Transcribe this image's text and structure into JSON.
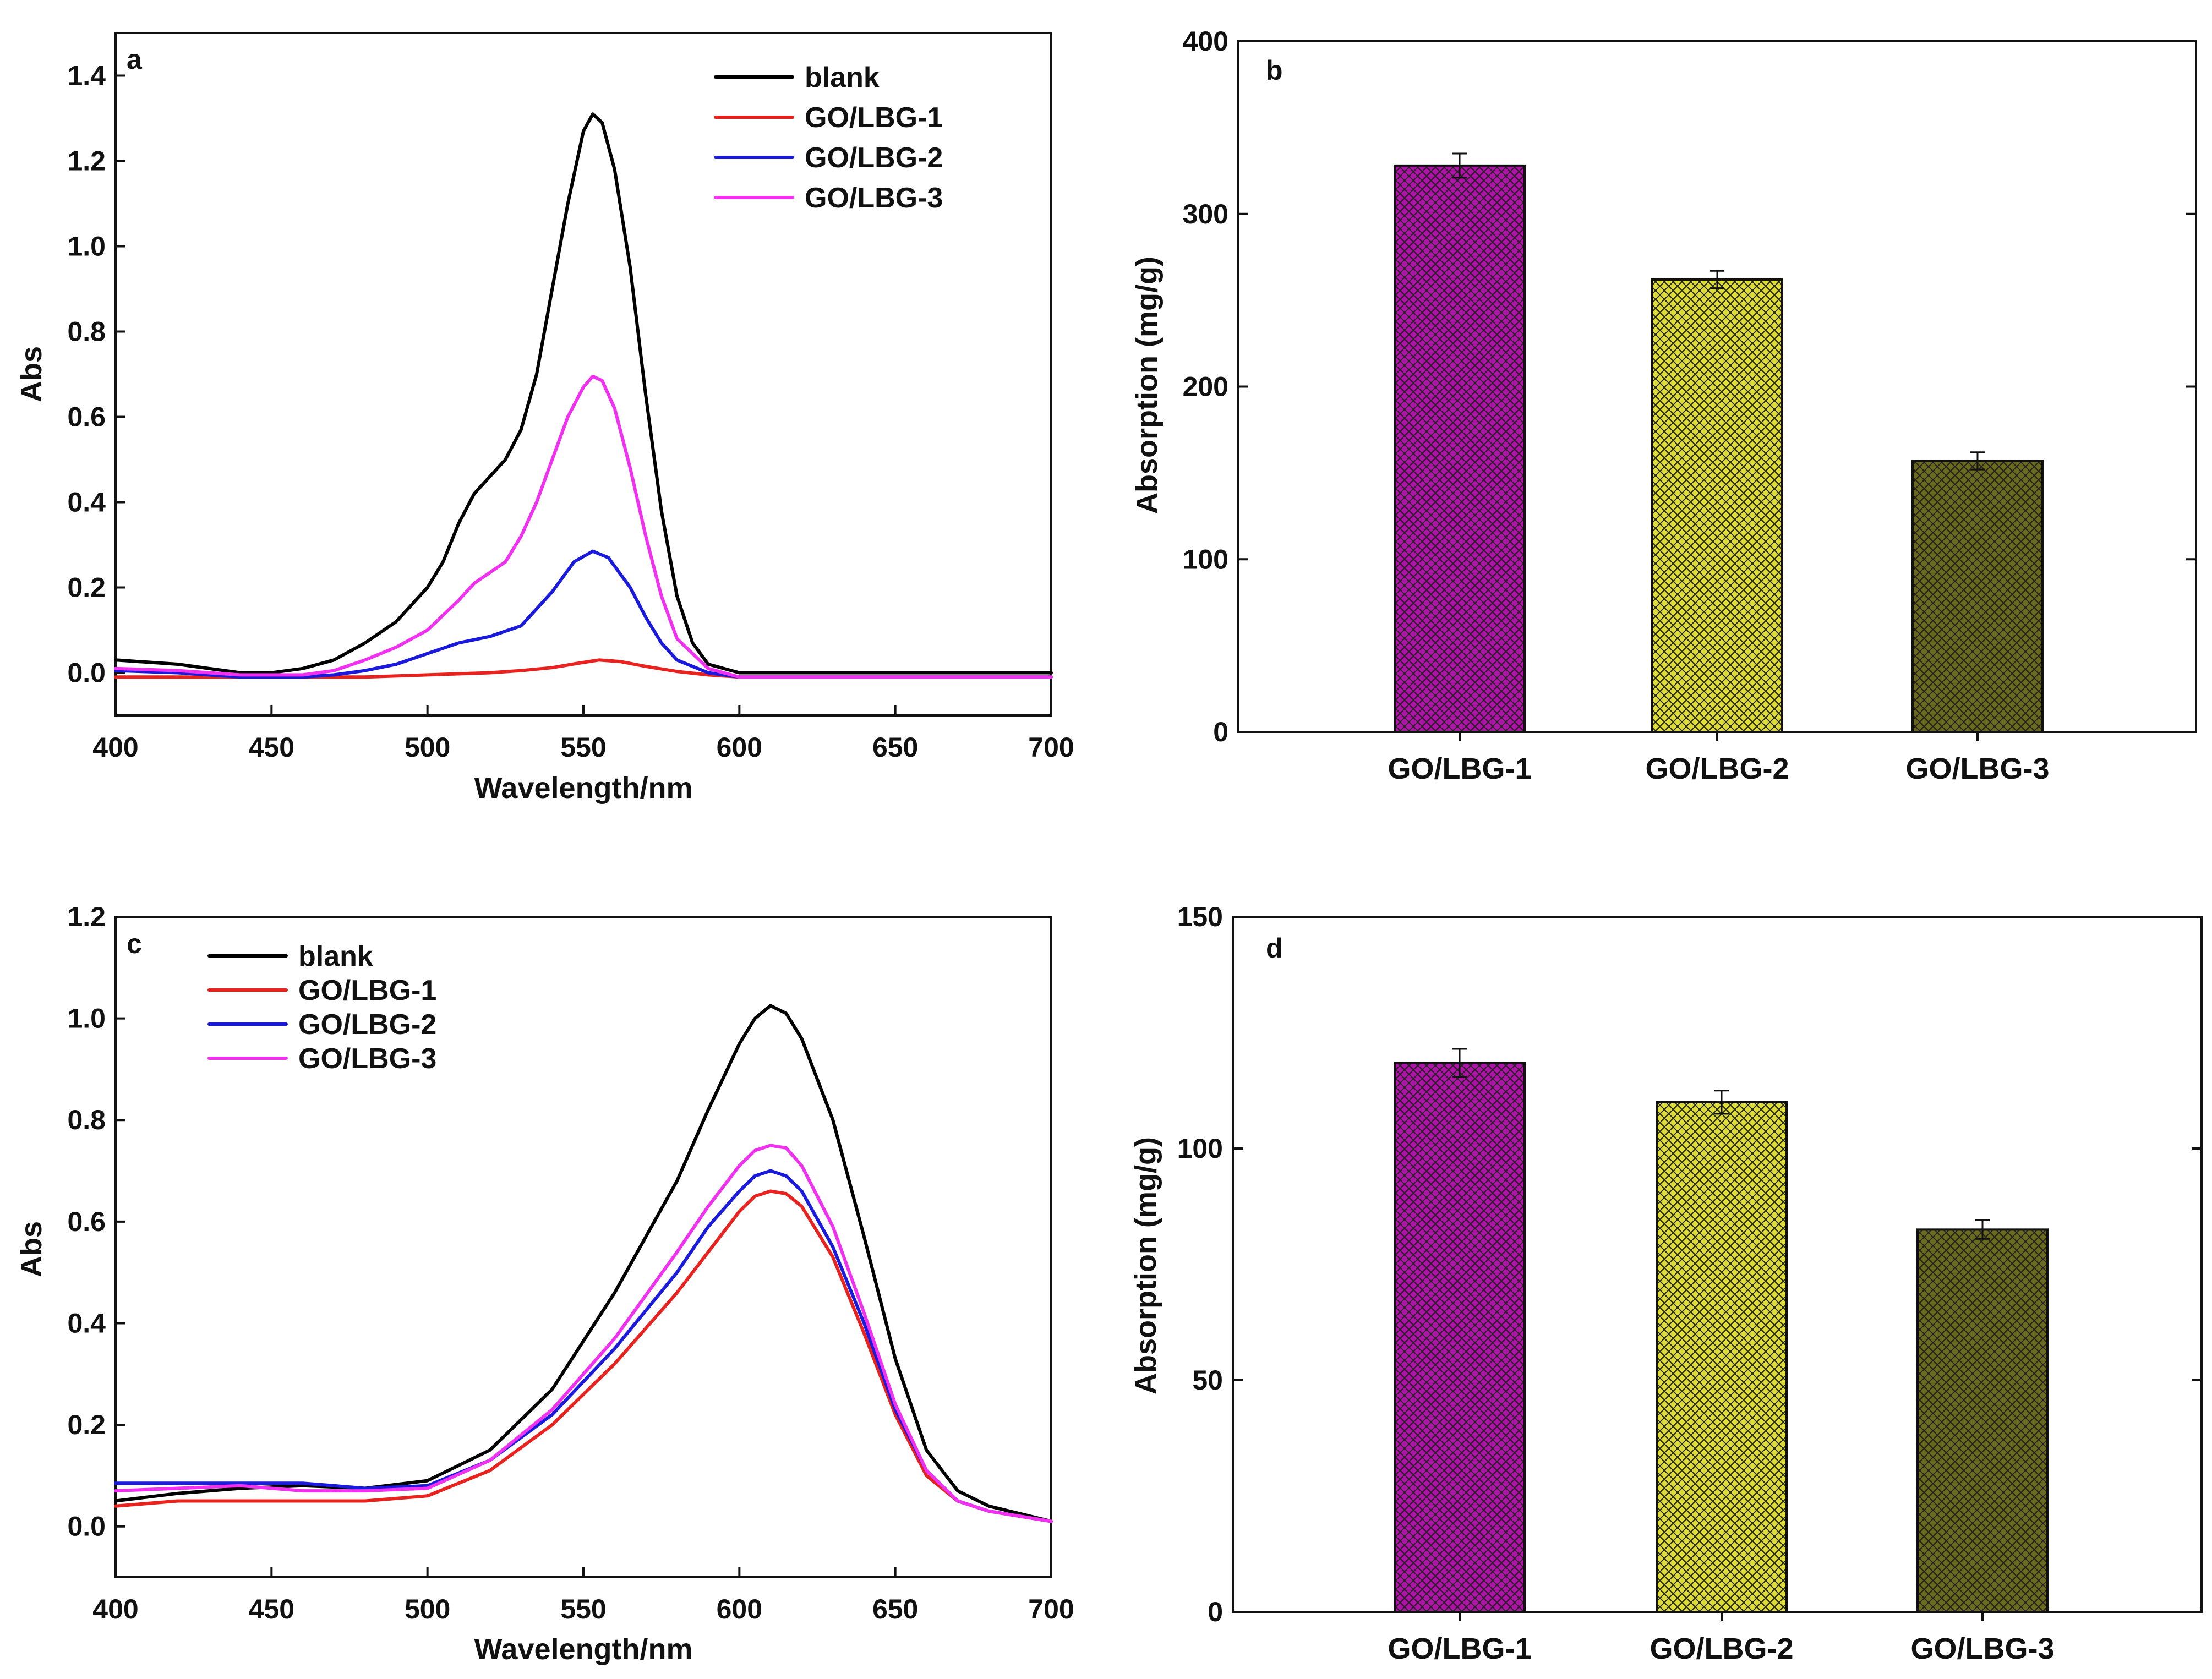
{
  "colors": {
    "blank": "#000000",
    "GO/LBG-1": "#e8231f",
    "GO/LBG-2": "#1a1adc",
    "GO/LBG-3": "#f032f0",
    "bar1": "#b012a8",
    "bar2": "#dcdc3a",
    "bar3": "#6b6b20"
  },
  "chart_data": [
    {
      "panel": "a",
      "type": "line",
      "xlabel": "Wavelength/nm",
      "ylabel": "Abs",
      "xlim": [
        400,
        700
      ],
      "ylim": [
        -0.1,
        1.5
      ],
      "xticks": [
        400,
        450,
        500,
        550,
        600,
        650,
        700
      ],
      "yticks": [
        0.0,
        0.2,
        0.4,
        0.6,
        0.8,
        1.0,
        1.2,
        1.4
      ],
      "xtick_labels": [
        "400",
        "450",
        "500",
        "550",
        "600",
        "650",
        "700"
      ],
      "ytick_labels": [
        "0.0",
        "0.2",
        "0.4",
        "0.6",
        "0.8",
        "1.0",
        "1.2",
        "1.4"
      ],
      "legend": "top-right",
      "series": [
        {
          "name": "blank",
          "color_key": "blank",
          "x": [
            400,
            420,
            430,
            440,
            450,
            460,
            470,
            480,
            490,
            500,
            505,
            510,
            515,
            520,
            525,
            530,
            535,
            540,
            545,
            550,
            553,
            556,
            560,
            565,
            570,
            575,
            580,
            585,
            590,
            600,
            620,
            650,
            700
          ],
          "y": [
            0.03,
            0.02,
            0.01,
            0.0,
            0.0,
            0.01,
            0.03,
            0.07,
            0.12,
            0.2,
            0.26,
            0.35,
            0.42,
            0.46,
            0.5,
            0.57,
            0.7,
            0.9,
            1.1,
            1.27,
            1.31,
            1.29,
            1.18,
            0.95,
            0.65,
            0.38,
            0.18,
            0.07,
            0.02,
            0.0,
            0.0,
            0.0,
            0.0
          ]
        },
        {
          "name": "GO/LBG-1",
          "color_key": "GO/LBG-1",
          "x": [
            400,
            450,
            480,
            500,
            520,
            530,
            540,
            548,
            555,
            562,
            570,
            580,
            590,
            600,
            650,
            700
          ],
          "y": [
            -0.01,
            -0.01,
            -0.01,
            -0.005,
            0.0,
            0.005,
            0.012,
            0.022,
            0.03,
            0.026,
            0.015,
            0.003,
            -0.005,
            -0.01,
            -0.01,
            -0.01
          ]
        },
        {
          "name": "GO/LBG-2",
          "color_key": "GO/LBG-2",
          "x": [
            400,
            420,
            440,
            460,
            470,
            480,
            490,
            500,
            510,
            520,
            530,
            540,
            547,
            553,
            558,
            565,
            570,
            575,
            580,
            590,
            600,
            650,
            700
          ],
          "y": [
            0.005,
            0.0,
            -0.01,
            -0.01,
            -0.005,
            0.005,
            0.02,
            0.045,
            0.07,
            0.085,
            0.11,
            0.19,
            0.26,
            0.285,
            0.27,
            0.2,
            0.13,
            0.07,
            0.03,
            0.0,
            -0.01,
            -0.01,
            -0.01
          ]
        },
        {
          "name": "GO/LBG-3",
          "color_key": "GO/LBG-3",
          "x": [
            400,
            420,
            440,
            460,
            470,
            480,
            490,
            500,
            510,
            515,
            520,
            525,
            530,
            535,
            540,
            545,
            550,
            553,
            556,
            560,
            565,
            570,
            575,
            580,
            590,
            600,
            650,
            700
          ],
          "y": [
            0.01,
            0.005,
            -0.005,
            -0.005,
            0.005,
            0.03,
            0.06,
            0.1,
            0.17,
            0.21,
            0.235,
            0.26,
            0.32,
            0.4,
            0.5,
            0.6,
            0.67,
            0.695,
            0.685,
            0.62,
            0.48,
            0.32,
            0.18,
            0.08,
            0.01,
            -0.01,
            -0.01,
            -0.01
          ]
        }
      ]
    },
    {
      "panel": "b",
      "type": "bar",
      "xlabel": "",
      "ylabel": "Absorption (mg/g)",
      "ylim": [
        0,
        400
      ],
      "yticks": [
        0,
        100,
        200,
        300,
        400
      ],
      "ytick_labels": [
        "0",
        "100",
        "200",
        "300",
        "400"
      ],
      "categories": [
        "GO/LBG-1",
        "GO/LBG-2",
        "GO/LBG-3"
      ],
      "values": [
        328,
        262,
        157
      ],
      "errors": [
        7,
        5,
        5
      ],
      "color_keys": [
        "bar1",
        "bar2",
        "bar3"
      ]
    },
    {
      "panel": "c",
      "type": "line",
      "xlabel": "Wavelength/nm",
      "ylabel": "Abs",
      "xlim": [
        400,
        700
      ],
      "ylim": [
        -0.1,
        1.2
      ],
      "xticks": [
        400,
        450,
        500,
        550,
        600,
        650,
        700
      ],
      "yticks": [
        0.0,
        0.2,
        0.4,
        0.6,
        0.8,
        1.0,
        1.2
      ],
      "xtick_labels": [
        "400",
        "450",
        "500",
        "550",
        "600",
        "650",
        "700"
      ],
      "ytick_labels": [
        "0.0",
        "0.2",
        "0.4",
        "0.6",
        "0.8",
        "1.0",
        "1.2"
      ],
      "legend": "top-left",
      "series": [
        {
          "name": "blank",
          "color_key": "blank",
          "x": [
            400,
            420,
            440,
            460,
            480,
            500,
            520,
            540,
            560,
            580,
            590,
            600,
            605,
            610,
            615,
            620,
            630,
            640,
            650,
            660,
            670,
            680,
            700
          ],
          "y": [
            0.05,
            0.065,
            0.075,
            0.08,
            0.075,
            0.09,
            0.15,
            0.27,
            0.46,
            0.68,
            0.82,
            0.95,
            1.0,
            1.025,
            1.01,
            0.96,
            0.8,
            0.57,
            0.33,
            0.15,
            0.07,
            0.04,
            0.01
          ]
        },
        {
          "name": "GO/LBG-1",
          "color_key": "GO/LBG-1",
          "x": [
            400,
            420,
            440,
            460,
            480,
            500,
            520,
            540,
            560,
            580,
            590,
            600,
            605,
            610,
            615,
            620,
            630,
            640,
            650,
            660,
            670,
            680,
            700
          ],
          "y": [
            0.04,
            0.05,
            0.05,
            0.05,
            0.05,
            0.06,
            0.11,
            0.2,
            0.32,
            0.46,
            0.54,
            0.62,
            0.65,
            0.66,
            0.655,
            0.63,
            0.53,
            0.38,
            0.22,
            0.1,
            0.05,
            0.03,
            0.01
          ]
        },
        {
          "name": "GO/LBG-2",
          "color_key": "GO/LBG-2",
          "x": [
            400,
            420,
            440,
            460,
            470,
            480,
            500,
            520,
            540,
            560,
            580,
            590,
            600,
            605,
            610,
            615,
            620,
            630,
            640,
            650,
            660,
            670,
            680,
            700
          ],
          "y": [
            0.085,
            0.085,
            0.085,
            0.085,
            0.08,
            0.075,
            0.08,
            0.13,
            0.22,
            0.35,
            0.5,
            0.59,
            0.66,
            0.69,
            0.7,
            0.69,
            0.66,
            0.55,
            0.4,
            0.23,
            0.11,
            0.05,
            0.03,
            0.01
          ]
        },
        {
          "name": "GO/LBG-3",
          "color_key": "GO/LBG-3",
          "x": [
            400,
            420,
            440,
            460,
            480,
            500,
            520,
            540,
            560,
            580,
            590,
            600,
            605,
            610,
            615,
            620,
            630,
            640,
            650,
            660,
            670,
            680,
            700
          ],
          "y": [
            0.07,
            0.075,
            0.08,
            0.07,
            0.07,
            0.075,
            0.13,
            0.23,
            0.37,
            0.54,
            0.63,
            0.71,
            0.74,
            0.75,
            0.745,
            0.71,
            0.59,
            0.42,
            0.24,
            0.11,
            0.05,
            0.03,
            0.01
          ]
        }
      ]
    },
    {
      "panel": "d",
      "type": "bar",
      "xlabel": "",
      "ylabel": "Absorption (mg/g)",
      "ylim": [
        0,
        150
      ],
      "yticks": [
        0,
        50,
        100,
        150
      ],
      "ytick_labels": [
        "0",
        "50",
        "100",
        "150"
      ],
      "categories": [
        "GO/LBG-1",
        "GO/LBG-2",
        "GO/LBG-3"
      ],
      "values": [
        118.5,
        110,
        82.5
      ],
      "errors": [
        3,
        2.5,
        2
      ],
      "color_keys": [
        "bar1",
        "bar2",
        "bar3"
      ]
    }
  ]
}
